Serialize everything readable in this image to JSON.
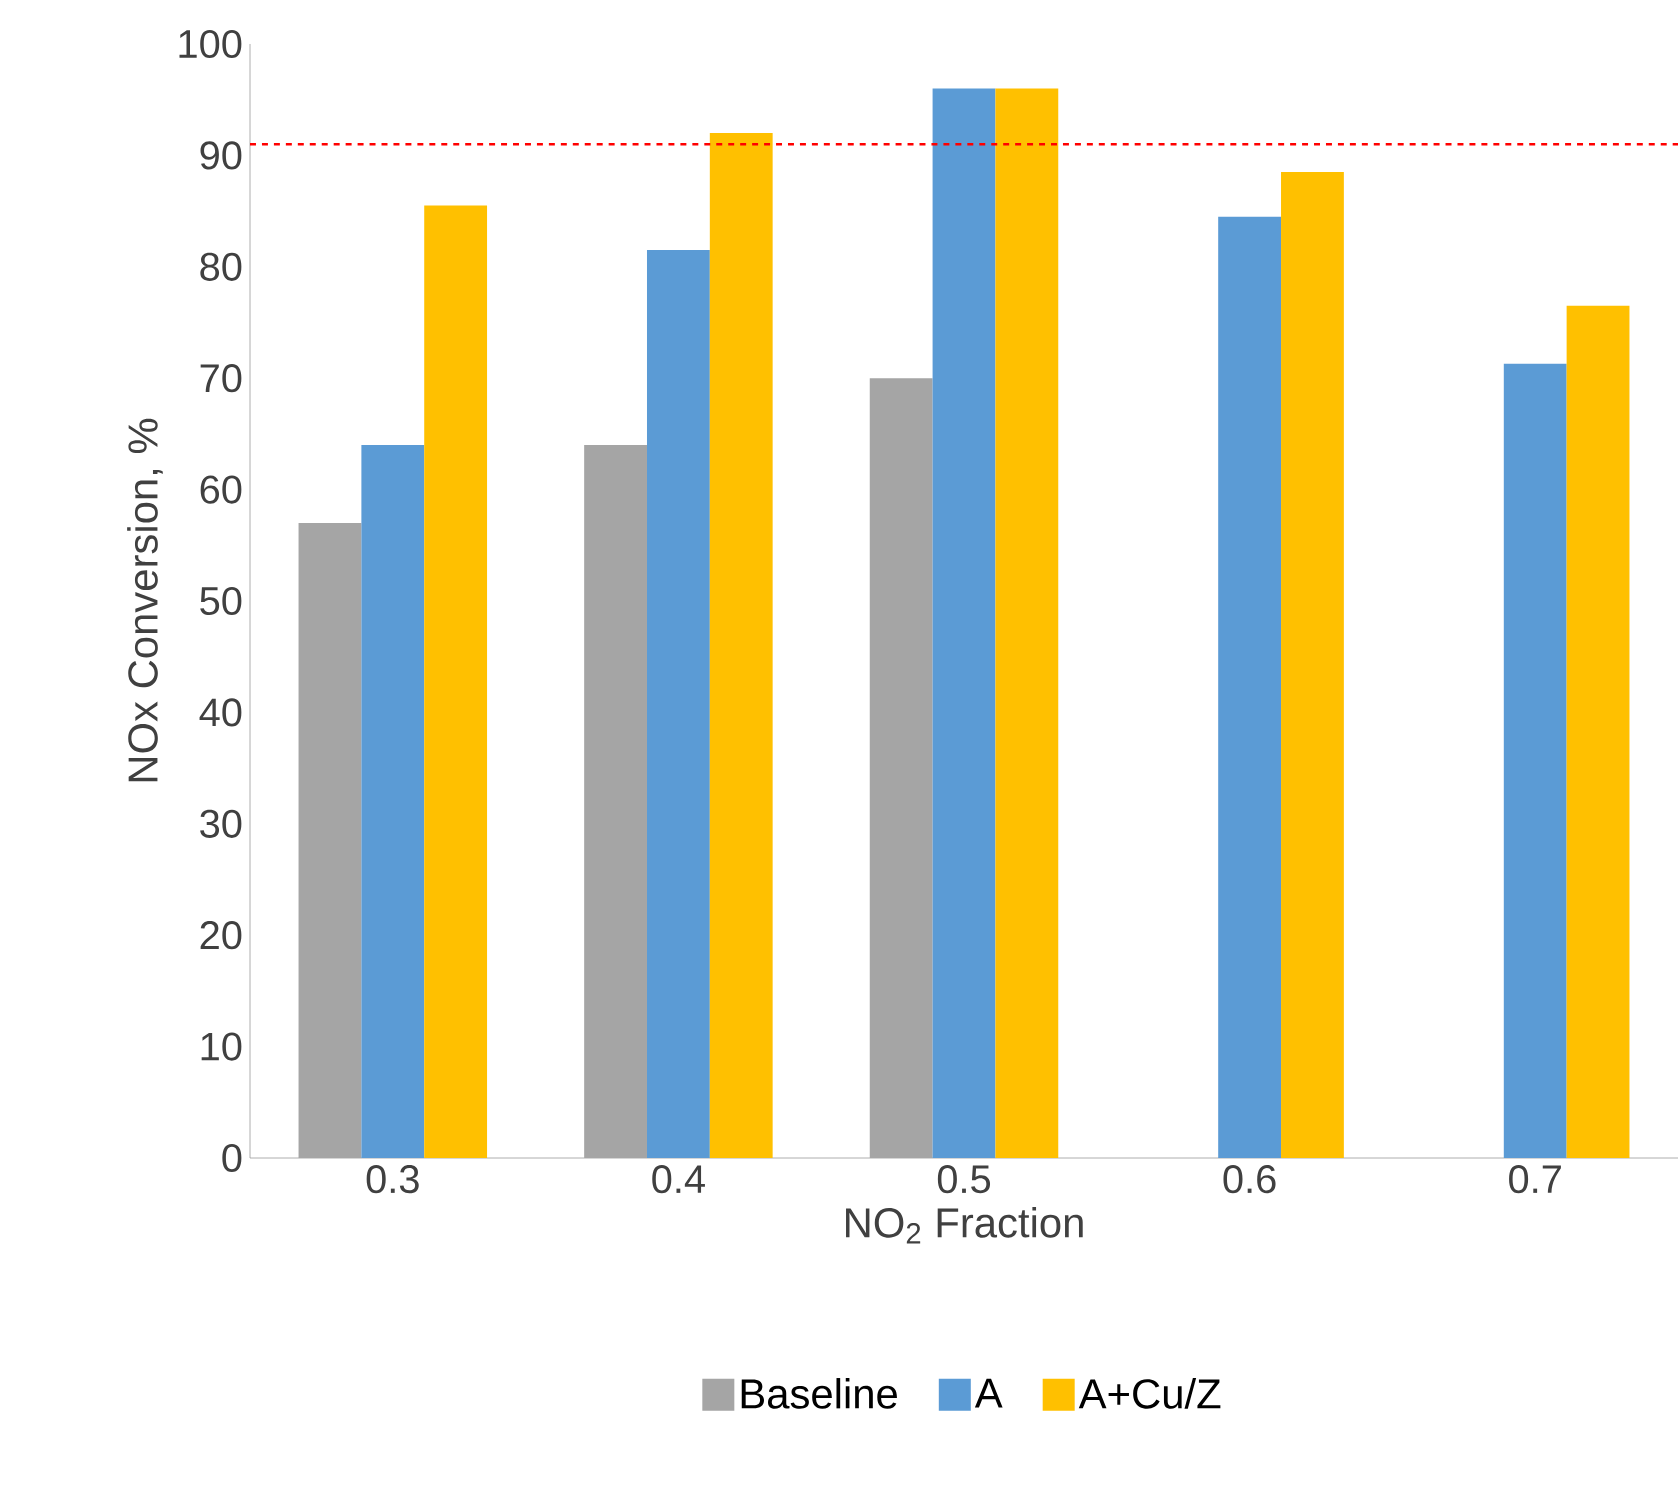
{
  "chart_data": {
    "type": "bar",
    "xlabel": "NO$_{2}$ Fraction",
    "ylabel": "NOx Conversion, %",
    "categories": [
      "0.3",
      "0.4",
      "0.5",
      "0.6",
      "0.7"
    ],
    "series": [
      {
        "name": "Baseline",
        "color": "#a5a5a5",
        "values": [
          57,
          64,
          70,
          null,
          null
        ]
      },
      {
        "name": "A",
        "color": "#5b9bd5",
        "values": [
          64,
          81.5,
          96,
          84.5,
          71.3
        ]
      },
      {
        "name": "A+Cu/Z",
        "color": "#ffc000",
        "values": [
          85.5,
          92,
          96,
          88.5,
          76.5
        ]
      }
    ],
    "ylim": [
      0,
      100
    ],
    "yticks": [
      0,
      10,
      20,
      30,
      40,
      50,
      60,
      70,
      80,
      90,
      100
    ],
    "ref_lines": [
      {
        "axis": "y",
        "value": 91,
        "color": "#ff0000",
        "line_style": "dashed"
      }
    ],
    "legend": "bottom",
    "grid": false
  }
}
